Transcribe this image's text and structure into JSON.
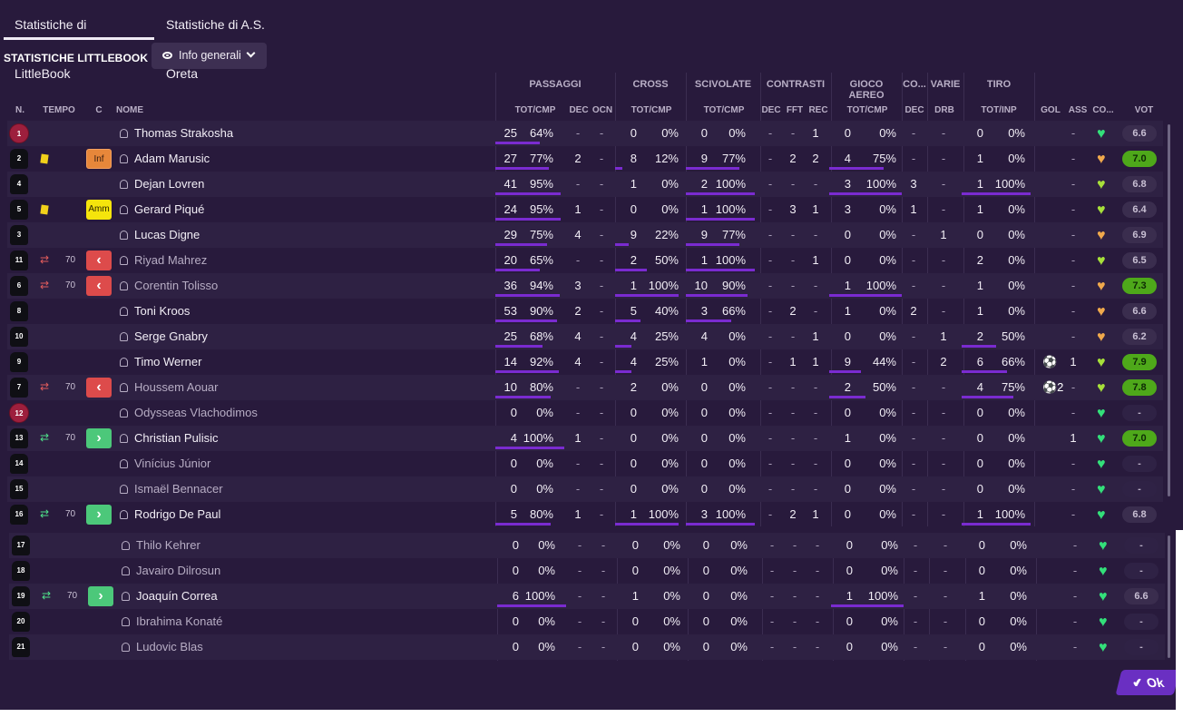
{
  "tabs": [
    "Statistiche di LittleBook",
    "Statistiche di A.S. Oreta"
  ],
  "title": "STATISTICHE LITTLEBOOK",
  "view_selector": "Info generali",
  "ok_label": "Ok",
  "groups": [
    "PASSAGGI",
    "CROSS",
    "SCIVOLATE",
    "CONTRASTI",
    "GIOCO AEREO",
    "CO...",
    "VARIE",
    "TIRO"
  ],
  "columns": [
    "N.",
    "TEMPO",
    "C",
    "NOME",
    "TOT/CMP",
    "DEC",
    "OCN",
    "TOT/CMP",
    "TOT/CMP",
    "DEC",
    "FFT",
    "REC",
    "TOT/CMP",
    "DEC",
    "DRB",
    "TOT/INP",
    "GOL",
    "ASS",
    "CO...",
    "VOT"
  ],
  "players": [
    {
      "n": "1",
      "gk": true,
      "name": "Thomas Strakosha",
      "pt": "25",
      "pp": "64%",
      "pb": 0.64,
      "pd": "-",
      "po": "-",
      "ct": "0",
      "cp": "0%",
      "cb": 0,
      "st": "0",
      "sp": "0%",
      "sb": 0,
      "kd": "-",
      "kf": "-",
      "kr": "1",
      "at": "0",
      "ap": "0%",
      "ab": 0,
      "co": "-",
      "dr": "-",
      "tt": "0",
      "tp": "0%",
      "tb": 0,
      "g": "",
      "a": "-",
      "h": "green",
      "v": "6.6",
      "vc": "mid"
    },
    {
      "n": "2",
      "card": "yellow",
      "badge": "Inf",
      "name": "Adam Marusic",
      "pt": "27",
      "pp": "77%",
      "pb": 0.77,
      "pd": "2",
      "po": "-",
      "ct": "8",
      "cp": "12%",
      "cb": 0.12,
      "st": "9",
      "sp": "77%",
      "sb": 0.77,
      "kd": "-",
      "kf": "2",
      "kr": "2",
      "at": "4",
      "ap": "75%",
      "ab": 0.75,
      "co": "-",
      "dr": "-",
      "tt": "1",
      "tp": "0%",
      "tb": 0,
      "g": "",
      "a": "-",
      "h": "gold",
      "v": "7.0",
      "vc": "high"
    },
    {
      "n": "4",
      "name": "Dejan Lovren",
      "pt": "41",
      "pp": "95%",
      "pb": 0.95,
      "pd": "-",
      "po": "-",
      "ct": "1",
      "cp": "0%",
      "cb": 0,
      "st": "2",
      "sp": "100%",
      "sb": 1,
      "kd": "-",
      "kf": "-",
      "kr": "-",
      "at": "3",
      "ap": "100%",
      "ab": 1,
      "co": "3",
      "dr": "-",
      "tt": "1",
      "tp": "100%",
      "tb": 1,
      "g": "",
      "a": "-",
      "h": "lime",
      "v": "6.8",
      "vc": "mid"
    },
    {
      "n": "5",
      "card": "yellow",
      "badge": "Amm",
      "name": "Gerard Piqué",
      "pt": "24",
      "pp": "95%",
      "pb": 0.95,
      "pd": "1",
      "po": "-",
      "ct": "0",
      "cp": "0%",
      "cb": 0,
      "st": "1",
      "sp": "100%",
      "sb": 1,
      "kd": "-",
      "kf": "3",
      "kr": "1",
      "at": "3",
      "ap": "0%",
      "ab": 0,
      "co": "1",
      "dr": "-",
      "tt": "1",
      "tp": "0%",
      "tb": 0,
      "g": "",
      "a": "-",
      "h": "lime",
      "v": "6.4",
      "vc": "mid"
    },
    {
      "n": "3",
      "name": "Lucas Digne",
      "pt": "29",
      "pp": "75%",
      "pb": 0.75,
      "pd": "4",
      "po": "-",
      "ct": "9",
      "cp": "22%",
      "cb": 0.22,
      "st": "9",
      "sp": "77%",
      "sb": 0.77,
      "kd": "-",
      "kf": "-",
      "kr": "-",
      "at": "0",
      "ap": "0%",
      "ab": 0,
      "co": "-",
      "dr": "1",
      "tt": "0",
      "tp": "0%",
      "tb": 0,
      "g": "",
      "a": "-",
      "h": "gold",
      "v": "6.9",
      "vc": "mid"
    },
    {
      "n": "11",
      "swap": "out",
      "min": "70",
      "badge": "out",
      "dim": true,
      "name": "Riyad Mahrez",
      "pt": "20",
      "pp": "65%",
      "pb": 0.65,
      "pd": "-",
      "po": "-",
      "ct": "2",
      "cp": "50%",
      "cb": 0.5,
      "st": "1",
      "sp": "100%",
      "sb": 1,
      "kd": "-",
      "kf": "-",
      "kr": "1",
      "at": "0",
      "ap": "0%",
      "ab": 0,
      "co": "-",
      "dr": "-",
      "tt": "2",
      "tp": "0%",
      "tb": 0,
      "g": "",
      "a": "-",
      "h": "lime",
      "v": "6.5",
      "vc": "mid"
    },
    {
      "n": "6",
      "swap": "out",
      "min": "70",
      "badge": "out",
      "dim": true,
      "name": "Corentin Tolisso",
      "pt": "36",
      "pp": "94%",
      "pb": 0.94,
      "pd": "3",
      "po": "-",
      "ct": "1",
      "cp": "100%",
      "cb": 1,
      "st": "10",
      "sp": "90%",
      "sb": 0.9,
      "kd": "-",
      "kf": "-",
      "kr": "-",
      "at": "1",
      "ap": "100%",
      "ab": 1,
      "co": "-",
      "dr": "-",
      "tt": "1",
      "tp": "0%",
      "tb": 0,
      "g": "",
      "a": "-",
      "h": "gold",
      "v": "7.3",
      "vc": "high"
    },
    {
      "n": "8",
      "name": "Toni Kroos",
      "pt": "53",
      "pp": "90%",
      "pb": 0.9,
      "pd": "2",
      "po": "-",
      "ct": "5",
      "cp": "40%",
      "cb": 0.4,
      "st": "3",
      "sp": "66%",
      "sb": 0.66,
      "kd": "-",
      "kf": "2",
      "kr": "-",
      "at": "1",
      "ap": "0%",
      "ab": 0,
      "co": "2",
      "dr": "-",
      "tt": "1",
      "tp": "0%",
      "tb": 0,
      "g": "",
      "a": "-",
      "h": "gold",
      "v": "6.6",
      "vc": "mid"
    },
    {
      "n": "10",
      "name": "Serge Gnabry",
      "pt": "25",
      "pp": "68%",
      "pb": 0.68,
      "pd": "4",
      "po": "-",
      "ct": "4",
      "cp": "25%",
      "cb": 0.25,
      "st": "4",
      "sp": "0%",
      "sb": 0,
      "kd": "-",
      "kf": "-",
      "kr": "1",
      "at": "0",
      "ap": "0%",
      "ab": 0,
      "co": "-",
      "dr": "1",
      "tt": "2",
      "tp": "50%",
      "tb": 0.5,
      "g": "",
      "a": "-",
      "h": "gold",
      "v": "6.2",
      "vc": "mid"
    },
    {
      "n": "9",
      "name": "Timo Werner",
      "pt": "14",
      "pp": "92%",
      "pb": 0.92,
      "pd": "4",
      "po": "-",
      "ct": "4",
      "cp": "25%",
      "cb": 0.25,
      "st": "1",
      "sp": "0%",
      "sb": 0,
      "kd": "-",
      "kf": "1",
      "kr": "1",
      "at": "9",
      "ap": "44%",
      "ab": 0.44,
      "co": "-",
      "dr": "2",
      "tt": "6",
      "tp": "66%",
      "tb": 0.66,
      "g": "⚽",
      "a": "1",
      "h": "lime",
      "v": "7.9",
      "vc": "high"
    },
    {
      "n": "7",
      "swap": "out",
      "min": "70",
      "badge": "out",
      "dim": true,
      "name": "Houssem Aouar",
      "pt": "10",
      "pp": "80%",
      "pb": 0.8,
      "pd": "-",
      "po": "-",
      "ct": "2",
      "cp": "0%",
      "cb": 0,
      "st": "0",
      "sp": "0%",
      "sb": 0,
      "kd": "-",
      "kf": "-",
      "kr": "-",
      "at": "2",
      "ap": "50%",
      "ab": 0.5,
      "co": "-",
      "dr": "-",
      "tt": "4",
      "tp": "75%",
      "tb": 0.75,
      "g": "⚽2",
      "a": "-",
      "h": "lime",
      "v": "7.8",
      "vc": "high"
    },
    {
      "n": "12",
      "gk": true,
      "dim": true,
      "name": "Odysseas Vlachodimos",
      "pt": "0",
      "pp": "0%",
      "pb": 0,
      "pd": "-",
      "po": "-",
      "ct": "0",
      "cp": "0%",
      "cb": 0,
      "st": "0",
      "sp": "0%",
      "sb": 0,
      "kd": "-",
      "kf": "-",
      "kr": "-",
      "at": "0",
      "ap": "0%",
      "ab": 0,
      "co": "-",
      "dr": "-",
      "tt": "0",
      "tp": "0%",
      "tb": 0,
      "g": "",
      "a": "-",
      "h": "green",
      "v": "-",
      "vc": "dash"
    },
    {
      "n": "13",
      "swap": "in",
      "min": "70",
      "badge": "in",
      "name": "Christian Pulisic",
      "pt": "4",
      "pp": "100%",
      "pb": 1,
      "pd": "1",
      "po": "-",
      "ct": "0",
      "cp": "0%",
      "cb": 0,
      "st": "0",
      "sp": "0%",
      "sb": 0,
      "kd": "-",
      "kf": "-",
      "kr": "-",
      "at": "1",
      "ap": "0%",
      "ab": 0,
      "co": "-",
      "dr": "-",
      "tt": "0",
      "tp": "0%",
      "tb": 0,
      "g": "",
      "a": "1",
      "h": "green",
      "v": "7.0",
      "vc": "high"
    },
    {
      "n": "14",
      "dim": true,
      "name": "Vinícius Júnior",
      "pt": "0",
      "pp": "0%",
      "pb": 0,
      "pd": "-",
      "po": "-",
      "ct": "0",
      "cp": "0%",
      "cb": 0,
      "st": "0",
      "sp": "0%",
      "sb": 0,
      "kd": "-",
      "kf": "-",
      "kr": "-",
      "at": "0",
      "ap": "0%",
      "ab": 0,
      "co": "-",
      "dr": "-",
      "tt": "0",
      "tp": "0%",
      "tb": 0,
      "g": "",
      "a": "-",
      "h": "green",
      "v": "-",
      "vc": "dash"
    },
    {
      "n": "15",
      "dim": true,
      "name": "Ismaël Bennacer",
      "pt": "0",
      "pp": "0%",
      "pb": 0,
      "pd": "-",
      "po": "-",
      "ct": "0",
      "cp": "0%",
      "cb": 0,
      "st": "0",
      "sp": "0%",
      "sb": 0,
      "kd": "-",
      "kf": "-",
      "kr": "-",
      "at": "0",
      "ap": "0%",
      "ab": 0,
      "co": "-",
      "dr": "-",
      "tt": "0",
      "tp": "0%",
      "tb": 0,
      "g": "",
      "a": "-",
      "h": "green",
      "v": "-",
      "vc": "dash"
    },
    {
      "n": "16",
      "swap": "in",
      "min": "70",
      "badge": "in",
      "name": "Rodrigo De Paul",
      "pt": "5",
      "pp": "80%",
      "pb": 0.8,
      "pd": "1",
      "po": "-",
      "ct": "1",
      "cp": "100%",
      "cb": 1,
      "st": "3",
      "sp": "100%",
      "sb": 1,
      "kd": "-",
      "kf": "2",
      "kr": "1",
      "at": "0",
      "ap": "0%",
      "ab": 0,
      "co": "-",
      "dr": "-",
      "tt": "1",
      "tp": "100%",
      "tb": 1,
      "g": "",
      "a": "-",
      "h": "green",
      "v": "6.8",
      "vc": "mid"
    },
    {
      "n": "17",
      "dim": true,
      "name": "Thilo Kehrer",
      "pt": "0",
      "pp": "0%",
      "pb": 0,
      "pd": "-",
      "po": "-",
      "ct": "0",
      "cp": "0%",
      "cb": 0,
      "st": "0",
      "sp": "0%",
      "sb": 0,
      "kd": "-",
      "kf": "-",
      "kr": "-",
      "at": "0",
      "ap": "0%",
      "ab": 0,
      "co": "-",
      "dr": "-",
      "tt": "0",
      "tp": "0%",
      "tb": 0,
      "g": "",
      "a": "-",
      "h": "green",
      "v": "-",
      "vc": "dash"
    },
    {
      "n": "18",
      "dim": true,
      "name": "Javairo Dilrosun",
      "pt": "0",
      "pp": "0%",
      "pb": 0,
      "pd": "-",
      "po": "-",
      "ct": "0",
      "cp": "0%",
      "cb": 0,
      "st": "0",
      "sp": "0%",
      "sb": 0,
      "kd": "-",
      "kf": "-",
      "kr": "-",
      "at": "0",
      "ap": "0%",
      "ab": 0,
      "co": "-",
      "dr": "-",
      "tt": "0",
      "tp": "0%",
      "tb": 0,
      "g": "",
      "a": "-",
      "h": "green",
      "v": "-",
      "vc": "dash"
    },
    {
      "n": "19",
      "swap": "in",
      "min": "70",
      "badge": "in",
      "name": "Joaquín Correa",
      "pt": "6",
      "pp": "100%",
      "pb": 1,
      "pd": "-",
      "po": "-",
      "ct": "1",
      "cp": "0%",
      "cb": 0,
      "st": "0",
      "sp": "0%",
      "sb": 0,
      "kd": "-",
      "kf": "-",
      "kr": "-",
      "at": "1",
      "ap": "100%",
      "ab": 1,
      "co": "-",
      "dr": "-",
      "tt": "1",
      "tp": "0%",
      "tb": 0,
      "g": "",
      "a": "-",
      "h": "green",
      "v": "6.6",
      "vc": "mid"
    },
    {
      "n": "20",
      "dim": true,
      "name": "Ibrahima Konaté",
      "pt": "0",
      "pp": "0%",
      "pb": 0,
      "pd": "-",
      "po": "-",
      "ct": "0",
      "cp": "0%",
      "cb": 0,
      "st": "0",
      "sp": "0%",
      "sb": 0,
      "kd": "-",
      "kf": "-",
      "kr": "-",
      "at": "0",
      "ap": "0%",
      "ab": 0,
      "co": "-",
      "dr": "-",
      "tt": "0",
      "tp": "0%",
      "tb": 0,
      "g": "",
      "a": "-",
      "h": "green",
      "v": "-",
      "vc": "dash"
    },
    {
      "n": "21",
      "dim": true,
      "name": "Ludovic Blas",
      "pt": "0",
      "pp": "0%",
      "pb": 0,
      "pd": "-",
      "po": "-",
      "ct": "0",
      "cp": "0%",
      "cb": 0,
      "st": "0",
      "sp": "0%",
      "sb": 0,
      "kd": "-",
      "kf": "-",
      "kr": "-",
      "at": "0",
      "ap": "0%",
      "ab": 0,
      "co": "-",
      "dr": "-",
      "tt": "0",
      "tp": "0%",
      "tb": 0,
      "g": "",
      "a": "-",
      "h": "green",
      "v": "-",
      "vc": "dash"
    }
  ]
}
